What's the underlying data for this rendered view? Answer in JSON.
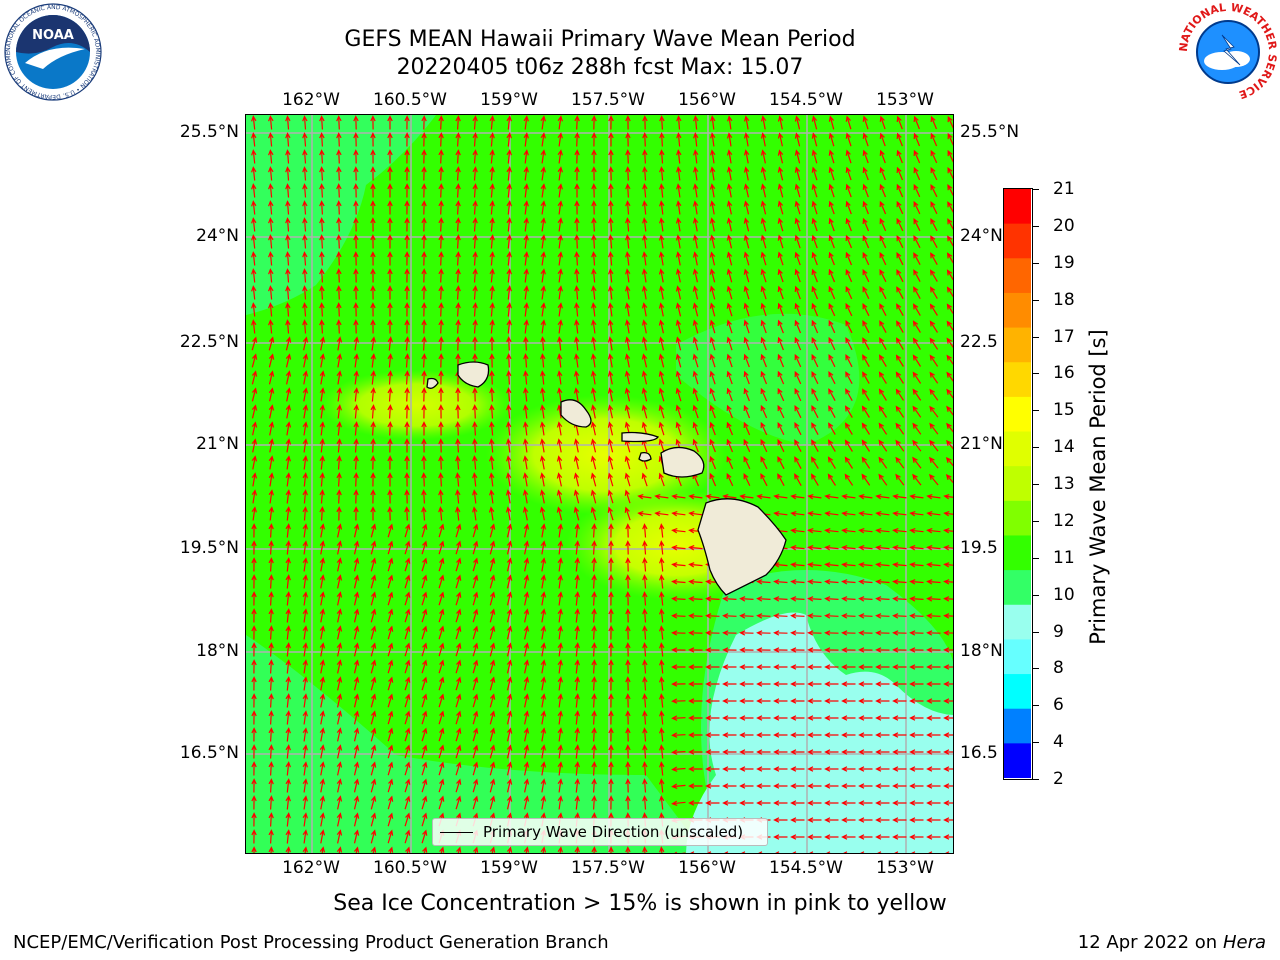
{
  "title": {
    "line1": "GEFS MEAN Hawaii Primary Wave Mean Period",
    "line2": "20220405 t06z 288h fcst   Max: 15.07"
  },
  "map": {
    "lon_ticks": [
      "162°W",
      "160.5°W",
      "159°W",
      "157.5°W",
      "156°W",
      "154.5°W",
      "153°W"
    ],
    "lat_ticks": [
      "25.5°N",
      "24°N",
      "22.5°N",
      "21°N",
      "19.5°N",
      "18°N",
      "16.5°N"
    ],
    "lat_ticks_right": [
      "25.5°N",
      "24°N",
      "22.5",
      "21°N",
      "19.5",
      "18°N",
      "16.5"
    ],
    "legend_label": "Primary Wave Direction (unscaled)",
    "arrow_color": "#ff0000",
    "land_color": "#f0ebd8",
    "grid_color": "#b0b0b0"
  },
  "colorbar": {
    "label": "Primary Wave Mean Period [s]",
    "ticks": [
      "21",
      "20",
      "19",
      "18",
      "17",
      "16",
      "15",
      "14",
      "13",
      "12",
      "11",
      "10",
      "9",
      "8",
      "6",
      "4",
      "2"
    ],
    "colors": [
      "#ff0000",
      "#ff3300",
      "#ff6600",
      "#ff8c00",
      "#ffb300",
      "#ffd800",
      "#ffff00",
      "#e0ff00",
      "#bfff00",
      "#80ff00",
      "#33ff00",
      "#33ff66",
      "#99ffee",
      "#66ffff",
      "#00ffff",
      "#0080ff",
      "#0000ff"
    ]
  },
  "caption": "Sea Ice Concentration > 15% is shown in pink to yellow",
  "footer": {
    "left": "NCEP/EMC/Verification Post Processing Product Generation Branch",
    "right_prefix": "12 Apr 2022 on ",
    "right_host": "Hera"
  },
  "logos": {
    "noaa_text": "NOAA",
    "noaa_ring": "NATIONAL OCEANIC AND ATMOSPHERIC ADMINISTRATION • U.S. DEPARTMENT OF COMMERCE",
    "nws_ring": "NATIONAL WEATHER SERVICE"
  }
}
